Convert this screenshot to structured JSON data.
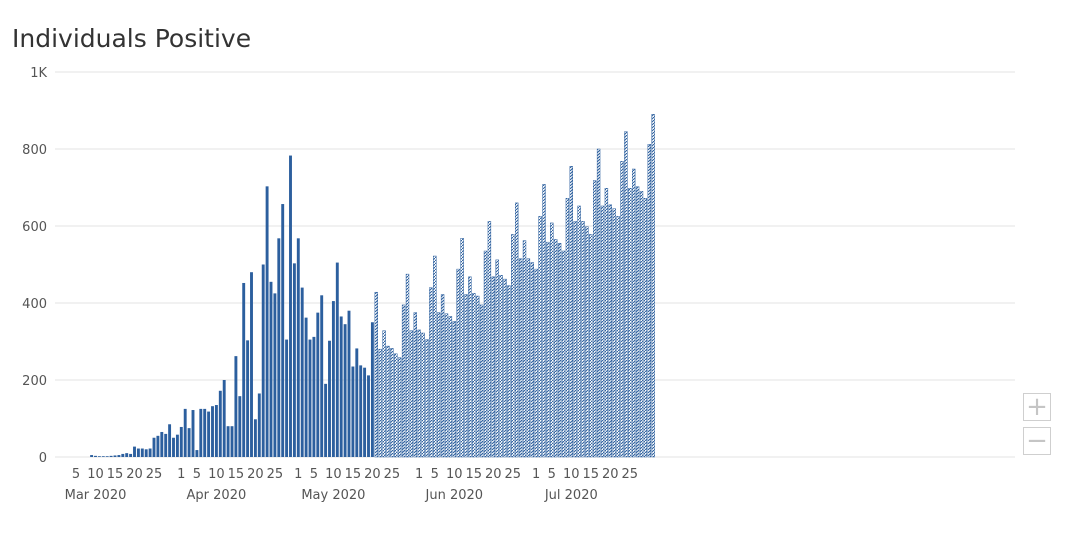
{
  "chart_data": {
    "type": "bar",
    "title": "Individuals Positive",
    "xlabel": "",
    "ylabel": "",
    "ylim": [
      0,
      1000
    ],
    "y_ticks": [
      {
        "value": 0,
        "label": "0"
      },
      {
        "value": 200,
        "label": "200"
      },
      {
        "value": 400,
        "label": "400"
      },
      {
        "value": 600,
        "label": "600"
      },
      {
        "value": 800,
        "label": "800"
      },
      {
        "value": 1000,
        "label": "1K"
      }
    ],
    "x_start": "2020-03-05",
    "x_day_ticks": [
      {
        "date": "2020-03-05",
        "label": "5"
      },
      {
        "date": "2020-03-10",
        "label": "10"
      },
      {
        "date": "2020-03-15",
        "label": "15"
      },
      {
        "date": "2020-03-20",
        "label": "20"
      },
      {
        "date": "2020-03-25",
        "label": "25"
      },
      {
        "date": "2020-04-01",
        "label": "1"
      },
      {
        "date": "2020-04-05",
        "label": "5"
      },
      {
        "date": "2020-04-10",
        "label": "10"
      },
      {
        "date": "2020-04-15",
        "label": "15"
      },
      {
        "date": "2020-04-20",
        "label": "20"
      },
      {
        "date": "2020-04-25",
        "label": "25"
      },
      {
        "date": "2020-05-01",
        "label": "1"
      },
      {
        "date": "2020-05-05",
        "label": "5"
      },
      {
        "date": "2020-05-10",
        "label": "10"
      },
      {
        "date": "2020-05-15",
        "label": "15"
      },
      {
        "date": "2020-05-20",
        "label": "20"
      },
      {
        "date": "2020-05-25",
        "label": "25"
      },
      {
        "date": "2020-06-01",
        "label": "1"
      },
      {
        "date": "2020-06-05",
        "label": "5"
      },
      {
        "date": "2020-06-10",
        "label": "10"
      },
      {
        "date": "2020-06-15",
        "label": "15"
      },
      {
        "date": "2020-06-20",
        "label": "20"
      },
      {
        "date": "2020-06-25",
        "label": "25"
      },
      {
        "date": "2020-07-01",
        "label": "1"
      },
      {
        "date": "2020-07-05",
        "label": "5"
      },
      {
        "date": "2020-07-10",
        "label": "10"
      },
      {
        "date": "2020-07-15",
        "label": "15"
      },
      {
        "date": "2020-07-20",
        "label": "20"
      },
      {
        "date": "2020-07-25",
        "label": "25"
      }
    ],
    "x_month_ticks": [
      {
        "date": "2020-03-10",
        "label": "Mar 2020"
      },
      {
        "date": "2020-04-10",
        "label": "Apr 2020"
      },
      {
        "date": "2020-05-10",
        "label": "May 2020"
      },
      {
        "date": "2020-06-10",
        "label": "Jun 2020"
      },
      {
        "date": "2020-07-10",
        "label": "Jul 2020"
      }
    ],
    "series": [
      {
        "style": "solid",
        "color": "#2c5f9e",
        "x": [
          "2020-03-09",
          "2020-03-10",
          "2020-03-11",
          "2020-03-12",
          "2020-03-13",
          "2020-03-14",
          "2020-03-15",
          "2020-03-16",
          "2020-03-17",
          "2020-03-18",
          "2020-03-19",
          "2020-03-20",
          "2020-03-21",
          "2020-03-22",
          "2020-03-23",
          "2020-03-24",
          "2020-03-25",
          "2020-03-26",
          "2020-03-27",
          "2020-03-28",
          "2020-03-29",
          "2020-03-30",
          "2020-03-31",
          "2020-04-01",
          "2020-04-02",
          "2020-04-03",
          "2020-04-04",
          "2020-04-05",
          "2020-04-06",
          "2020-04-07",
          "2020-04-08",
          "2020-04-09",
          "2020-04-10",
          "2020-04-11",
          "2020-04-12",
          "2020-04-13",
          "2020-04-14",
          "2020-04-15",
          "2020-04-16",
          "2020-04-17",
          "2020-04-18",
          "2020-04-19",
          "2020-04-20",
          "2020-04-21",
          "2020-04-22",
          "2020-04-23",
          "2020-04-24",
          "2020-04-25",
          "2020-04-26",
          "2020-04-27",
          "2020-04-28",
          "2020-04-29",
          "2020-04-30",
          "2020-05-01",
          "2020-05-02",
          "2020-05-03",
          "2020-05-04",
          "2020-05-05",
          "2020-05-06",
          "2020-05-07",
          "2020-05-08",
          "2020-05-09",
          "2020-05-10",
          "2020-05-11",
          "2020-05-12",
          "2020-05-13",
          "2020-05-14",
          "2020-05-15",
          "2020-05-16",
          "2020-05-17",
          "2020-05-18",
          "2020-05-19",
          "2020-05-20"
        ],
        "values": [
          5,
          3,
          2,
          2,
          2,
          3,
          4,
          5,
          8,
          10,
          8,
          27,
          22,
          22,
          20,
          22,
          50,
          55,
          65,
          60,
          85,
          50,
          58,
          78,
          125,
          75,
          122,
          18,
          125,
          125,
          118,
          132,
          135,
          172,
          200,
          80,
          80,
          262,
          158,
          452,
          303,
          480,
          98,
          165,
          500,
          703,
          455,
          425,
          568,
          657,
          305,
          783,
          503,
          568,
          440,
          362,
          305,
          312,
          375,
          420,
          190,
          302,
          405,
          505,
          365,
          345,
          380,
          235,
          282,
          238,
          232,
          212,
          350
        ]
      },
      {
        "style": "hatched",
        "color": "#2c5f9e",
        "x": [
          "2020-05-21",
          "2020-05-22",
          "2020-05-23",
          "2020-05-24",
          "2020-05-25",
          "2020-05-26",
          "2020-05-27",
          "2020-05-28",
          "2020-05-29",
          "2020-05-30",
          "2020-05-31",
          "2020-06-01",
          "2020-06-02",
          "2020-06-03",
          "2020-06-04",
          "2020-06-05",
          "2020-06-06",
          "2020-06-07",
          "2020-06-08",
          "2020-06-09",
          "2020-06-10",
          "2020-06-11",
          "2020-06-12",
          "2020-06-13",
          "2020-06-14",
          "2020-06-15",
          "2020-06-16",
          "2020-06-17",
          "2020-06-18",
          "2020-06-19",
          "2020-06-20",
          "2020-06-21",
          "2020-06-22",
          "2020-06-23",
          "2020-06-24",
          "2020-06-25",
          "2020-06-26",
          "2020-06-27",
          "2020-06-28",
          "2020-06-29",
          "2020-06-30",
          "2020-07-01",
          "2020-07-02",
          "2020-07-03",
          "2020-07-04",
          "2020-07-05",
          "2020-07-06",
          "2020-07-07",
          "2020-07-08",
          "2020-07-09",
          "2020-07-10",
          "2020-07-11",
          "2020-07-12",
          "2020-07-13",
          "2020-07-14",
          "2020-07-15",
          "2020-07-16",
          "2020-07-17",
          "2020-07-18",
          "2020-07-19",
          "2020-07-20",
          "2020-07-21",
          "2020-07-22",
          "2020-07-23",
          "2020-07-24",
          "2020-07-25",
          "2020-07-26",
          "2020-07-27",
          "2020-07-28",
          "2020-07-29",
          "2020-07-30",
          "2020-07-31"
        ],
        "values": [
          428,
          280,
          328,
          288,
          282,
          268,
          258,
          395,
          475,
          328,
          375,
          330,
          322,
          305,
          440,
          522,
          375,
          422,
          372,
          365,
          352,
          488,
          568,
          422,
          468,
          425,
          418,
          395,
          535,
          612,
          468,
          512,
          472,
          462,
          445,
          578,
          660,
          515,
          562,
          515,
          505,
          488,
          625,
          708,
          558,
          608,
          565,
          555,
          535,
          672,
          755,
          612,
          652,
          612,
          598,
          578,
          718,
          800,
          652,
          698,
          655,
          645,
          625,
          768,
          845,
          698,
          748,
          702,
          690,
          672,
          812,
          890
        ]
      }
    ]
  },
  "controls": {
    "zoom_in_label": "+",
    "zoom_out_label": "−"
  }
}
